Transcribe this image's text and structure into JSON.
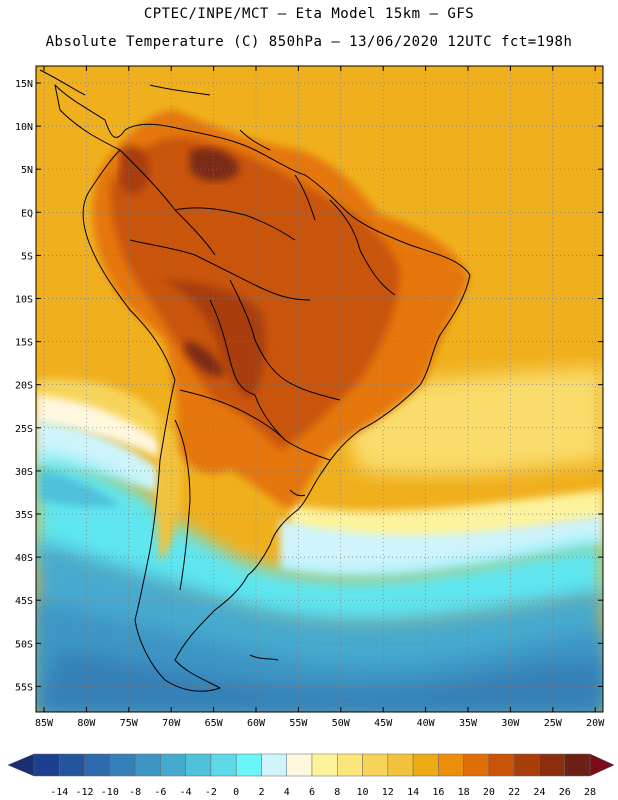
{
  "header": {
    "line1": "CPTEC/INPE/MCT –  Eta Model 15km – GFS",
    "line2": "Absolute Temperature (C) 850hPa – 13/06/2020 12UTC fct=198h"
  },
  "map": {
    "lat_labels": [
      "15N",
      "10N",
      "5N",
      "EQ",
      "5S",
      "10S",
      "15S",
      "20S",
      "25S",
      "30S",
      "35S",
      "40S",
      "45S",
      "50S",
      "55S"
    ],
    "lon_labels": [
      "85W",
      "80W",
      "75W",
      "70W",
      "65W",
      "60W",
      "55W",
      "50W",
      "45W",
      "40W",
      "35W",
      "30W",
      "25W",
      "20W"
    ]
  },
  "colorbar": {
    "labels": [
      "-14",
      "-12",
      "-10",
      "-8",
      "-6",
      "-4",
      "-2",
      "0",
      "2",
      "4",
      "6",
      "8",
      "10",
      "12",
      "14",
      "16",
      "18",
      "20",
      "22",
      "24",
      "26",
      "28"
    ],
    "colors": [
      "#1c3f8f",
      "#24559c",
      "#2e6aad",
      "#3580b8",
      "#3d95c4",
      "#46aacf",
      "#4fc1da",
      "#5dd9e8",
      "#6af5f8",
      "#cff4fb",
      "#fff8df",
      "#fdf39c",
      "#fbe67a",
      "#f6d45a",
      "#f2c23c",
      "#eeaa12",
      "#ec8f0c",
      "#e06e06",
      "#c95407",
      "#a83e09",
      "#8a2e0e",
      "#6e2014"
    ],
    "under_color": "#1b2e73",
    "over_color": "#7a0b1a"
  },
  "colors": {
    "ocean_warm": "#f0b01e",
    "land_line": "#000000"
  }
}
